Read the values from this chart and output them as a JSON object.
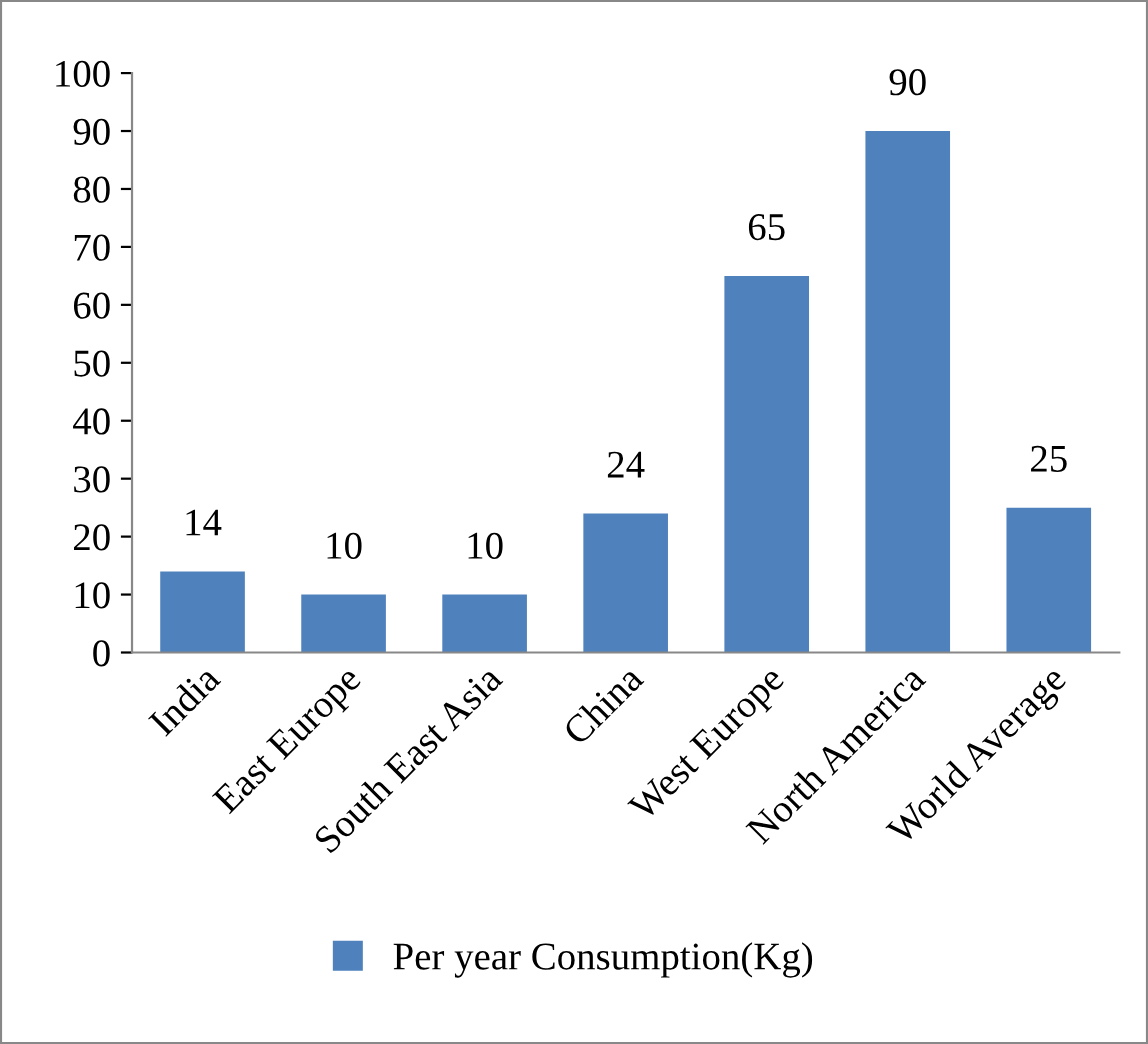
{
  "chart_data": {
    "type": "bar",
    "categories": [
      "India",
      "East Europe",
      "South East Asia",
      "China",
      "West Europe",
      "North America",
      "World Average"
    ],
    "series": [
      {
        "name": "Per year Consumption(Kg)",
        "color": "#4f81bd",
        "values": [
          14,
          10,
          10,
          24,
          65,
          90,
          25
        ]
      }
    ],
    "ylim": [
      0,
      100
    ],
    "yticks": [
      0,
      10,
      20,
      30,
      40,
      50,
      60,
      70,
      80,
      90,
      100
    ],
    "data_labels": true,
    "legend": "bottom",
    "grid": false
  }
}
